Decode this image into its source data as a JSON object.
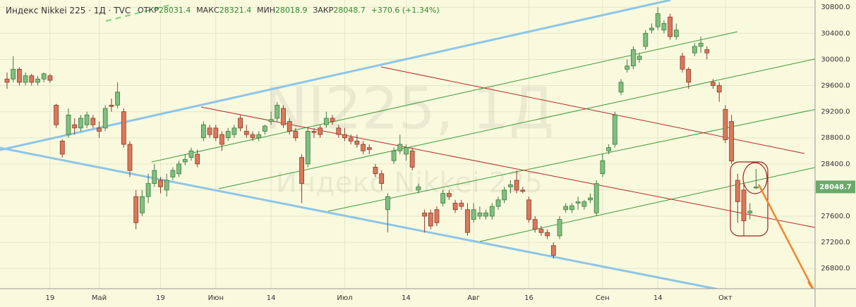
{
  "header": {
    "symbol": "Индекс Nikkei 225 · 1Д · TVC",
    "fields": [
      {
        "label": "ОТКР",
        "value": "28031.4"
      },
      {
        "label": "МАКС",
        "value": "28321.4"
      },
      {
        "label": "МИН",
        "value": "28018.9"
      },
      {
        "label": "ЗАКР",
        "value": "28048.7"
      }
    ],
    "change": "+370.6 (+1.34%)"
  },
  "watermark": {
    "main": "NI225, 1Д",
    "sub": "Индекс Nikkei 225"
  },
  "chart_data": {
    "type": "candlestick",
    "up_color": "#7fbf7f",
    "down_color": "#d9785c",
    "grid": true,
    "ylim": [
      26490,
      30910
    ],
    "yticks": [
      {
        "value": 26800,
        "label": "26800.0"
      },
      {
        "value": 27200,
        "label": "27200.0"
      },
      {
        "value": 27600,
        "label": "27600.0"
      },
      {
        "value": 28000,
        "label": "28000.0"
      },
      {
        "value": 28400,
        "label": "28400.0"
      },
      {
        "value": 28800,
        "label": "28800.0"
      },
      {
        "value": 29200,
        "label": "29200.0"
      },
      {
        "value": 29600,
        "label": "29600.0"
      },
      {
        "value": 30000,
        "label": "30000.0"
      },
      {
        "value": 30400,
        "label": "30400.0"
      },
      {
        "value": 30800,
        "label": "30800.0"
      }
    ],
    "last_price_label": "28048.7",
    "categories": [
      null,
      null,
      null,
      null,
      null,
      null,
      null,
      "19",
      null,
      null,
      null,
      null,
      null,
      null,
      null,
      "Май",
      null,
      null,
      null,
      null,
      null,
      null,
      null,
      null,
      null,
      "19",
      null,
      null,
      null,
      null,
      null,
      null,
      null,
      null,
      "Июн",
      null,
      null,
      null,
      null,
      null,
      null,
      null,
      null,
      "14",
      null,
      null,
      null,
      null,
      null,
      null,
      null,
      null,
      null,
      null,
      null,
      "Июл",
      null,
      null,
      null,
      null,
      null,
      null,
      null,
      null,
      null,
      "14",
      null,
      null,
      null,
      null,
      null,
      null,
      null,
      null,
      null,
      null,
      "Авг",
      null,
      null,
      null,
      null,
      null,
      null,
      null,
      null,
      "16",
      null,
      null,
      null,
      null,
      null,
      null,
      null,
      null,
      null,
      null,
      null,
      "Сен",
      null,
      null,
      null,
      null,
      null,
      null,
      null,
      null,
      "14",
      null,
      null,
      null,
      null,
      null,
      null,
      null,
      null,
      null,
      null,
      "Окт",
      null,
      null,
      null,
      null,
      null
    ],
    "open": [
      29700,
      29700,
      29850,
      29650,
      29750,
      29650,
      29700,
      29750,
      29300,
      28750,
      28850,
      29000,
      28950,
      29000,
      29100,
      28950,
      28950,
      29300,
      29300,
      29200,
      28700,
      27900,
      27650,
      27900,
      28100,
      28150,
      28000,
      28200,
      28250,
      28430,
      28500,
      28550,
      28800,
      28950,
      28950,
      28850,
      28800,
      28850,
      29100,
      28900,
      28850,
      28800,
      28900,
      29050,
      29100,
      29250,
      29050,
      28900,
      28500,
      28400,
      28900,
      28950,
      29000,
      29100,
      28950,
      28850,
      28800,
      28750,
      28700,
      28650,
      28350,
      28250,
      27700,
      28450,
      28600,
      28550,
      28600,
      28000,
      27650,
      27650,
      27700,
      27800,
      27950,
      27800,
      27800,
      27700,
      27550,
      27600,
      27600,
      27600,
      27750,
      27850,
      28050,
      28150,
      28000,
      27850,
      27550,
      27400,
      27350,
      27150,
      27300,
      27700,
      27700,
      27800,
      27750,
      27850,
      27650,
      28250,
      28600,
      28700,
      29500,
      29850,
      29900,
      30000,
      30200,
      30450,
      30500,
      30450,
      30650,
      30350,
      30050,
      29850,
      30100,
      30200,
      30150,
      29650,
      29600,
      29235,
      29050,
      28150,
      28000,
      27650,
      28031.4
    ],
    "high": [
      29800,
      30050,
      29880,
      29800,
      29780,
      29750,
      29800,
      29780,
      29320,
      28780,
      29250,
      29100,
      29150,
      29200,
      29150,
      29050,
      29300,
      29400,
      29650,
      29250,
      28750,
      28000,
      28000,
      28250,
      28400,
      28200,
      28250,
      28350,
      28450,
      28550,
      28650,
      28620,
      29050,
      29000,
      29000,
      28900,
      28950,
      29000,
      29150,
      29000,
      28900,
      28900,
      29000,
      29200,
      29350,
      29300,
      29100,
      28950,
      28550,
      28950,
      28950,
      29000,
      29200,
      29150,
      29000,
      28950,
      28850,
      28850,
      28750,
      28700,
      28400,
      28300,
      27950,
      28650,
      28850,
      28700,
      28650,
      28100,
      27700,
      27700,
      27750,
      28000,
      28000,
      27850,
      27850,
      27800,
      27800,
      27750,
      27700,
      27800,
      27900,
      28050,
      28150,
      28300,
      28050,
      27900,
      27600,
      27450,
      27400,
      27200,
      27600,
      27800,
      27800,
      27900,
      27850,
      27950,
      28150,
      28550,
      28700,
      29200,
      29700,
      30000,
      30200,
      30100,
      30450,
      30550,
      30800,
      30600,
      30700,
      30550,
      30100,
      29880,
      30250,
      30350,
      30200,
      29700,
      29650,
      29300,
      29150,
      28250,
      28100,
      27800,
      28321.4
    ],
    "low": [
      29550,
      29650,
      29600,
      29600,
      29600,
      29600,
      29650,
      29640,
      28950,
      28500,
      28800,
      28850,
      28900,
      28950,
      28950,
      28800,
      28900,
      29200,
      29250,
      28650,
      28200,
      27400,
      27600,
      27800,
      28050,
      27950,
      27900,
      28150,
      28200,
      28380,
      28450,
      28350,
      28750,
      28800,
      28750,
      28600,
      28750,
      28800,
      28900,
      28800,
      28750,
      28750,
      28850,
      29000,
      29050,
      28950,
      28850,
      28750,
      27800,
      28350,
      28800,
      28800,
      28950,
      29000,
      28800,
      28750,
      28700,
      28650,
      28550,
      28550,
      28200,
      28000,
      27350,
      28400,
      28550,
      28450,
      28300,
      27950,
      27350,
      27400,
      27450,
      27750,
      27850,
      27650,
      27700,
      27300,
      27500,
      27550,
      27550,
      27550,
      27700,
      27800,
      27950,
      27950,
      27950,
      27500,
      27350,
      27300,
      27250,
      26950,
      27250,
      27650,
      27650,
      27700,
      27700,
      27800,
      27600,
      28200,
      28550,
      28650,
      29450,
      29800,
      29850,
      29950,
      30150,
      30400,
      30450,
      30400,
      30300,
      30300,
      29800,
      29550,
      30050,
      30100,
      30000,
      29550,
      29350,
      28720,
      28400,
      27500,
      27300,
      27550,
      28018.9
    ],
    "close": [
      29650,
      29850,
      29650,
      29750,
      29650,
      29700,
      29780,
      29680,
      29000,
      28550,
      29150,
      28950,
      29100,
      29150,
      29000,
      28900,
      29250,
      29280,
      29500,
      28700,
      28300,
      27500,
      27900,
      28100,
      28300,
      28050,
      28150,
      28300,
      28400,
      28470,
      28600,
      28400,
      29000,
      28850,
      28800,
      28700,
      28900,
      28950,
      28950,
      28850,
      28800,
      28850,
      28980,
      29080,
      29300,
      29000,
      28900,
      28800,
      28100,
      28900,
      28880,
      28850,
      29100,
      29050,
      28850,
      28800,
      28750,
      28700,
      28600,
      28620,
      28250,
      28100,
      27900,
      28600,
      28700,
      28650,
      28350,
      28050,
      27600,
      27450,
      27500,
      27950,
      27900,
      27700,
      27750,
      27350,
      27700,
      27650,
      27650,
      27750,
      27850,
      28000,
      28080,
      28000,
      27980,
      27550,
      27400,
      27350,
      27300,
      27000,
      27550,
      27750,
      27760,
      27820,
      27820,
      27880,
      28100,
      28450,
      28650,
      29150,
      29650,
      29900,
      30150,
      30050,
      30400,
      30480,
      30700,
      30550,
      30350,
      30450,
      29850,
      29650,
      30200,
      30250,
      30100,
      29600,
      29500,
      28771,
      28444,
      27822,
      27528,
      27678,
      28048.7
    ]
  }
}
